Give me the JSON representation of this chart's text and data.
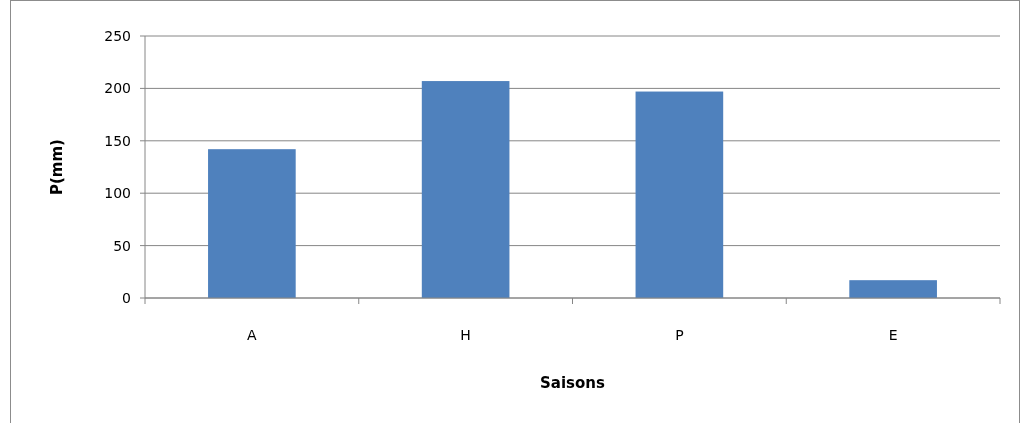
{
  "chart_data": {
    "type": "bar",
    "xlabel": "Saisons",
    "ylabel": "P(mm)",
    "categories": [
      "A",
      "H",
      "P",
      "E"
    ],
    "values": [
      142,
      207,
      197,
      17
    ],
    "color": "#4f81bd",
    "ylim": [
      0,
      250
    ],
    "yticks": [
      0,
      50,
      100,
      150,
      200,
      250
    ],
    "grid": "y"
  }
}
